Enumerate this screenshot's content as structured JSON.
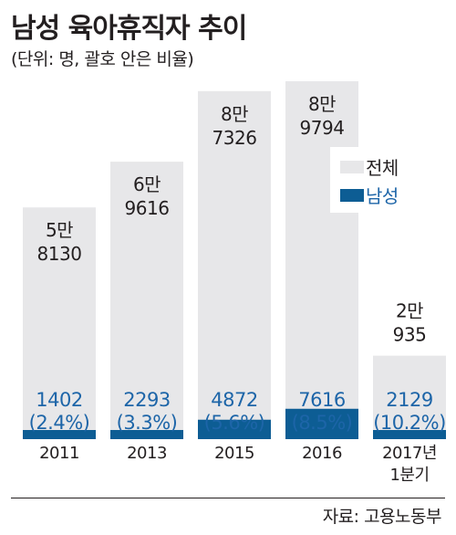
{
  "title": "남성 육아휴직자 추이",
  "subtitle": "(단위: 명, 괄호 안은 비율)",
  "source": "자료: 고용노동부",
  "colors": {
    "total": "#e7e7e9",
    "male": "#0d5d94",
    "male_text": "#1d65a8",
    "text": "#231f20"
  },
  "chart_data": {
    "type": "bar",
    "categories": [
      "2011",
      "2013",
      "2015",
      "2016",
      "2017년 1분기"
    ],
    "series": [
      {
        "name": "전체",
        "values": [
          58130,
          69616,
          87326,
          89794,
          20935
        ]
      },
      {
        "name": "남성",
        "values": [
          1402,
          2293,
          4872,
          7616,
          2129
        ]
      }
    ],
    "total_labels": [
      [
        "5만",
        "8130"
      ],
      [
        "6만",
        "9616"
      ],
      [
        "8만",
        "7326"
      ],
      [
        "8만",
        "9794"
      ],
      [
        "2만",
        "935"
      ]
    ],
    "male_labels": [
      "1402",
      "2293",
      "4872",
      "7616",
      "2129"
    ],
    "male_ratio_labels": [
      "(2.4%)",
      "(3.3%)",
      "(5.6%)",
      "(8.5%)",
      "(10.2%)"
    ],
    "category_labels": [
      [
        "2011"
      ],
      [
        "2013"
      ],
      [
        "2015"
      ],
      [
        "2016"
      ],
      [
        "2017년",
        "1분기"
      ]
    ],
    "legend": {
      "placement": "right",
      "entries": [
        "전체",
        "남성"
      ]
    }
  }
}
